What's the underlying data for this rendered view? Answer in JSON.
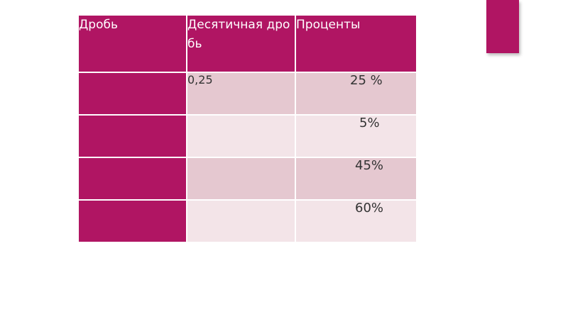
{
  "table": {
    "headers": [
      "Дробь",
      "Десятичная дробь",
      "Проценты"
    ],
    "rows": [
      {
        "fraction": "",
        "decimal": "0,25",
        "percent": "25 %"
      },
      {
        "fraction": "",
        "decimal": "",
        "percent": "5%"
      },
      {
        "fraction": "",
        "decimal": "",
        "percent": "45%"
      },
      {
        "fraction": "",
        "decimal": "",
        "percent": "60%"
      }
    ]
  },
  "colors": {
    "accent": "#b01563",
    "row_dark": "#e5c8d0",
    "row_light": "#f3e4e8"
  }
}
